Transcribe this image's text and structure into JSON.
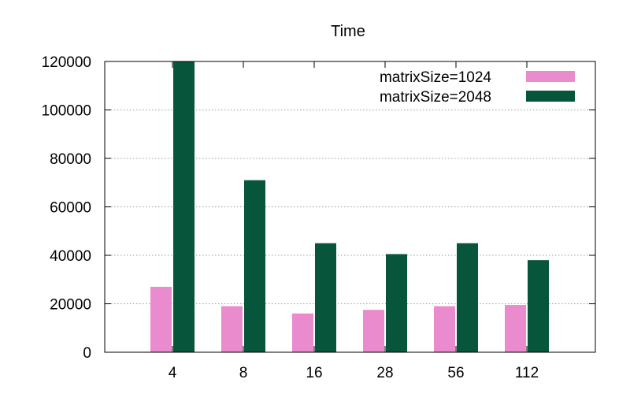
{
  "chart_data": {
    "type": "bar",
    "title": "Time",
    "xlabel": "",
    "ylabel": "",
    "categories": [
      "4",
      "8",
      "16",
      "28",
      "56",
      "112"
    ],
    "series": [
      {
        "name": "matrixSize=1024",
        "color": "#e98bcd",
        "values": [
          27000,
          19000,
          16000,
          17500,
          19000,
          19500
        ]
      },
      {
        "name": "matrixSize=2048",
        "color": "#07553a",
        "values": [
          120000,
          71000,
          45000,
          40500,
          45000,
          38000
        ]
      }
    ],
    "ylim": [
      0,
      120000
    ],
    "yticks": [
      0,
      20000,
      40000,
      60000,
      80000,
      100000,
      120000
    ],
    "ytick_labels": [
      "0",
      "20000",
      "40000",
      "60000",
      "80000",
      "100000",
      "120000"
    ],
    "grid": true,
    "legend_position": "top-right"
  }
}
